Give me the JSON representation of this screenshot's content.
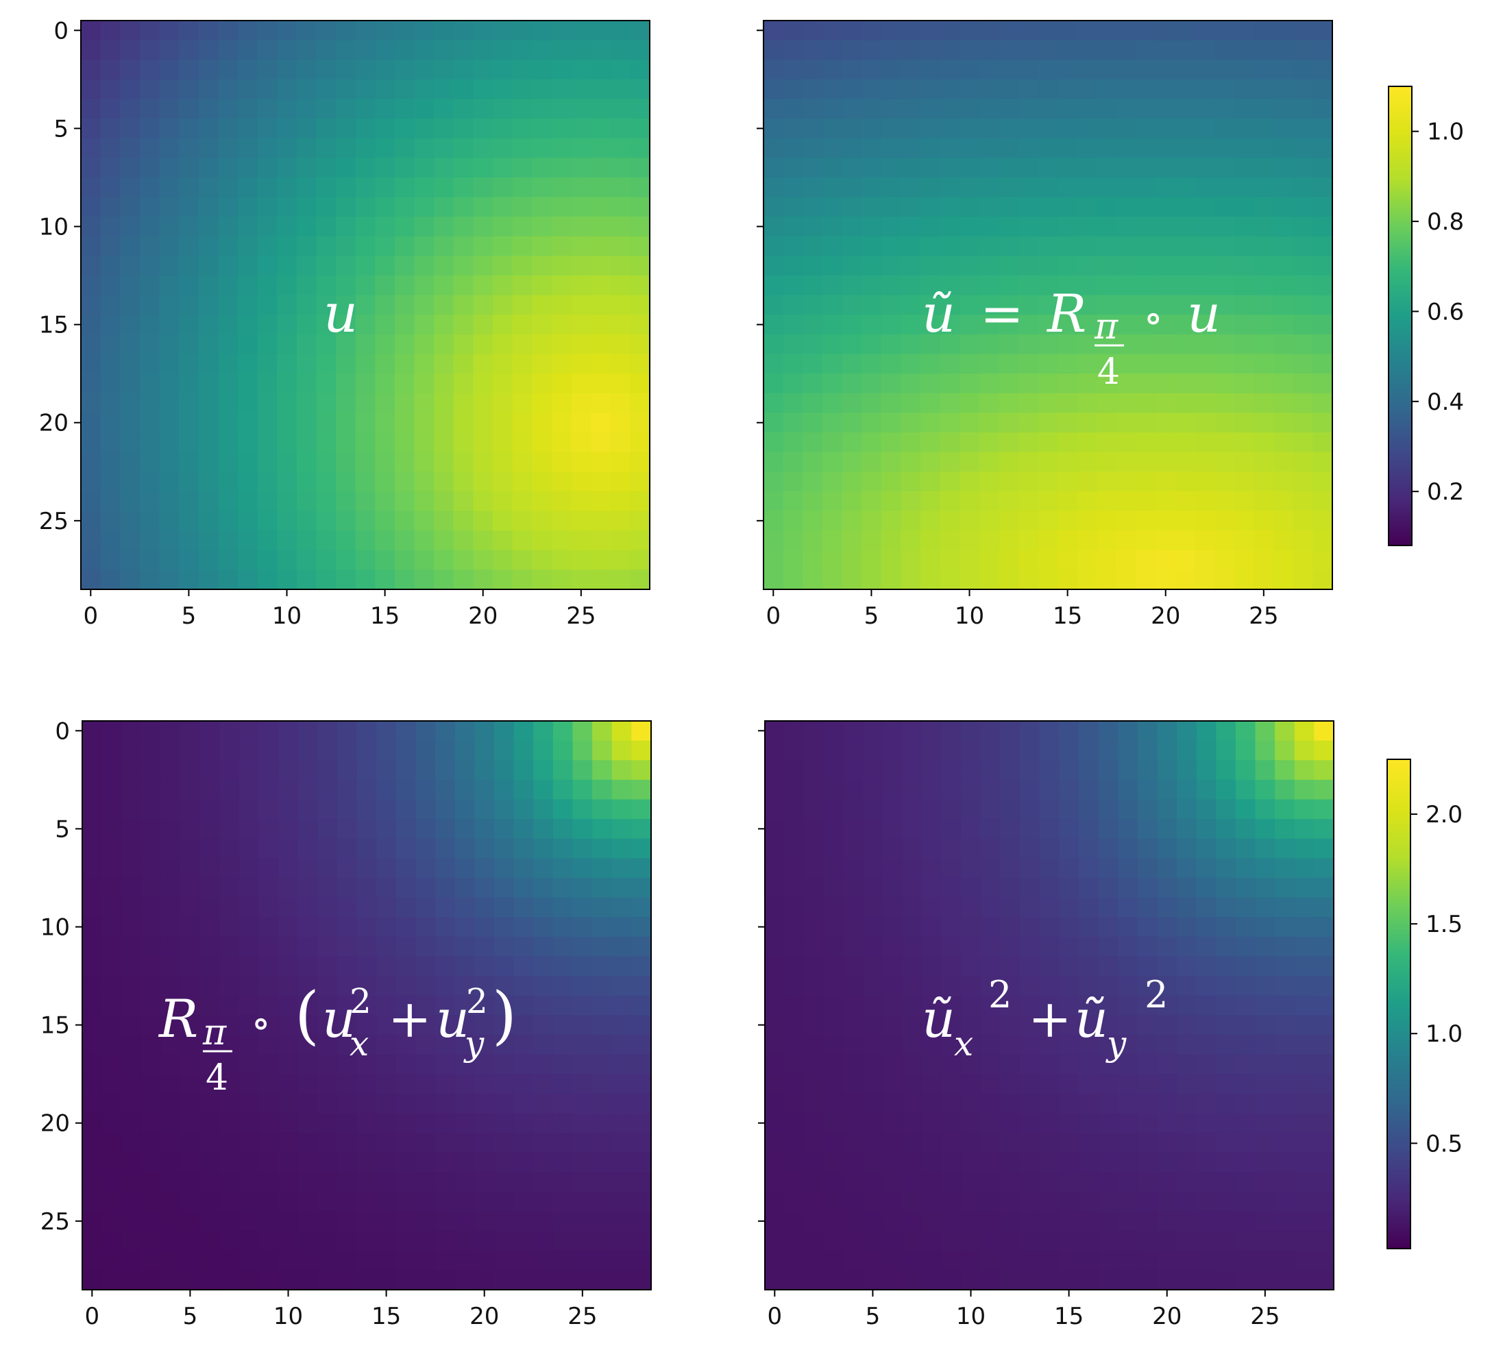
{
  "chart_data": [
    {
      "type": "heatmap",
      "grid_size": 29,
      "colormap": "viridis",
      "vmin": 0.08,
      "vmax": 1.1,
      "xticks": [
        0,
        5,
        10,
        15,
        20,
        25
      ],
      "yticks": [
        0,
        5,
        10,
        15,
        20,
        25
      ],
      "xtick_labels": [
        "0",
        "5",
        "10",
        "15",
        "20",
        "25"
      ],
      "ytick_labels": [
        "0",
        "5",
        "10",
        "15",
        "20",
        "25"
      ],
      "field": "u",
      "annotation": [
        "u"
      ]
    },
    {
      "type": "heatmap",
      "grid_size": 29,
      "colormap": "viridis",
      "vmin": 0.08,
      "vmax": 1.1,
      "xticks": [
        0,
        5,
        10,
        15,
        20,
        25
      ],
      "yticks": [
        0,
        5,
        10,
        15,
        20,
        25
      ],
      "xtick_labels": [
        "0",
        "5",
        "10",
        "15",
        "20",
        "25"
      ],
      "ytick_labels": [],
      "field": "u_rotated",
      "annotation": [
        "ũ",
        "=",
        "R",
        "π",
        "4",
        "∘",
        "u"
      ],
      "colorbar": {
        "ticks": [
          0.2,
          0.4,
          0.6,
          0.8,
          1.0
        ],
        "tick_labels": [
          "0.2",
          "0.4",
          "0.6",
          "0.8",
          "1.0"
        ]
      }
    },
    {
      "type": "heatmap",
      "grid_size": 29,
      "colormap": "viridis",
      "vmin": 0.02,
      "vmax": 2.25,
      "xticks": [
        0,
        5,
        10,
        15,
        20,
        25
      ],
      "yticks": [
        0,
        5,
        10,
        15,
        20,
        25
      ],
      "xtick_labels": [
        "0",
        "5",
        "10",
        "15",
        "20",
        "25"
      ],
      "ytick_labels": [
        "0",
        "5",
        "10",
        "15",
        "20",
        "25"
      ],
      "field": "grad_sq_rotated",
      "annotation": [
        "R",
        "π",
        "4",
        "∘",
        "(",
        "u",
        "x",
        "2",
        "+",
        "u",
        "y",
        "2",
        ")"
      ]
    },
    {
      "type": "heatmap",
      "grid_size": 29,
      "colormap": "viridis",
      "vmin": 0.02,
      "vmax": 2.25,
      "xticks": [
        0,
        5,
        10,
        15,
        20,
        25
      ],
      "yticks": [
        0,
        5,
        10,
        15,
        20,
        25
      ],
      "xtick_labels": [
        "0",
        "5",
        "10",
        "15",
        "20",
        "25"
      ],
      "ytick_labels": [],
      "field": "grad_sq_of_rotated",
      "annotation": [
        "ũ",
        "x",
        "2",
        "+",
        "ũ",
        "y",
        "2"
      ],
      "colorbar": {
        "ticks": [
          0.5,
          1.0,
          1.5,
          2.0
        ],
        "tick_labels": [
          "0.5",
          "1.0",
          "1.5",
          "2.0"
        ]
      }
    }
  ]
}
